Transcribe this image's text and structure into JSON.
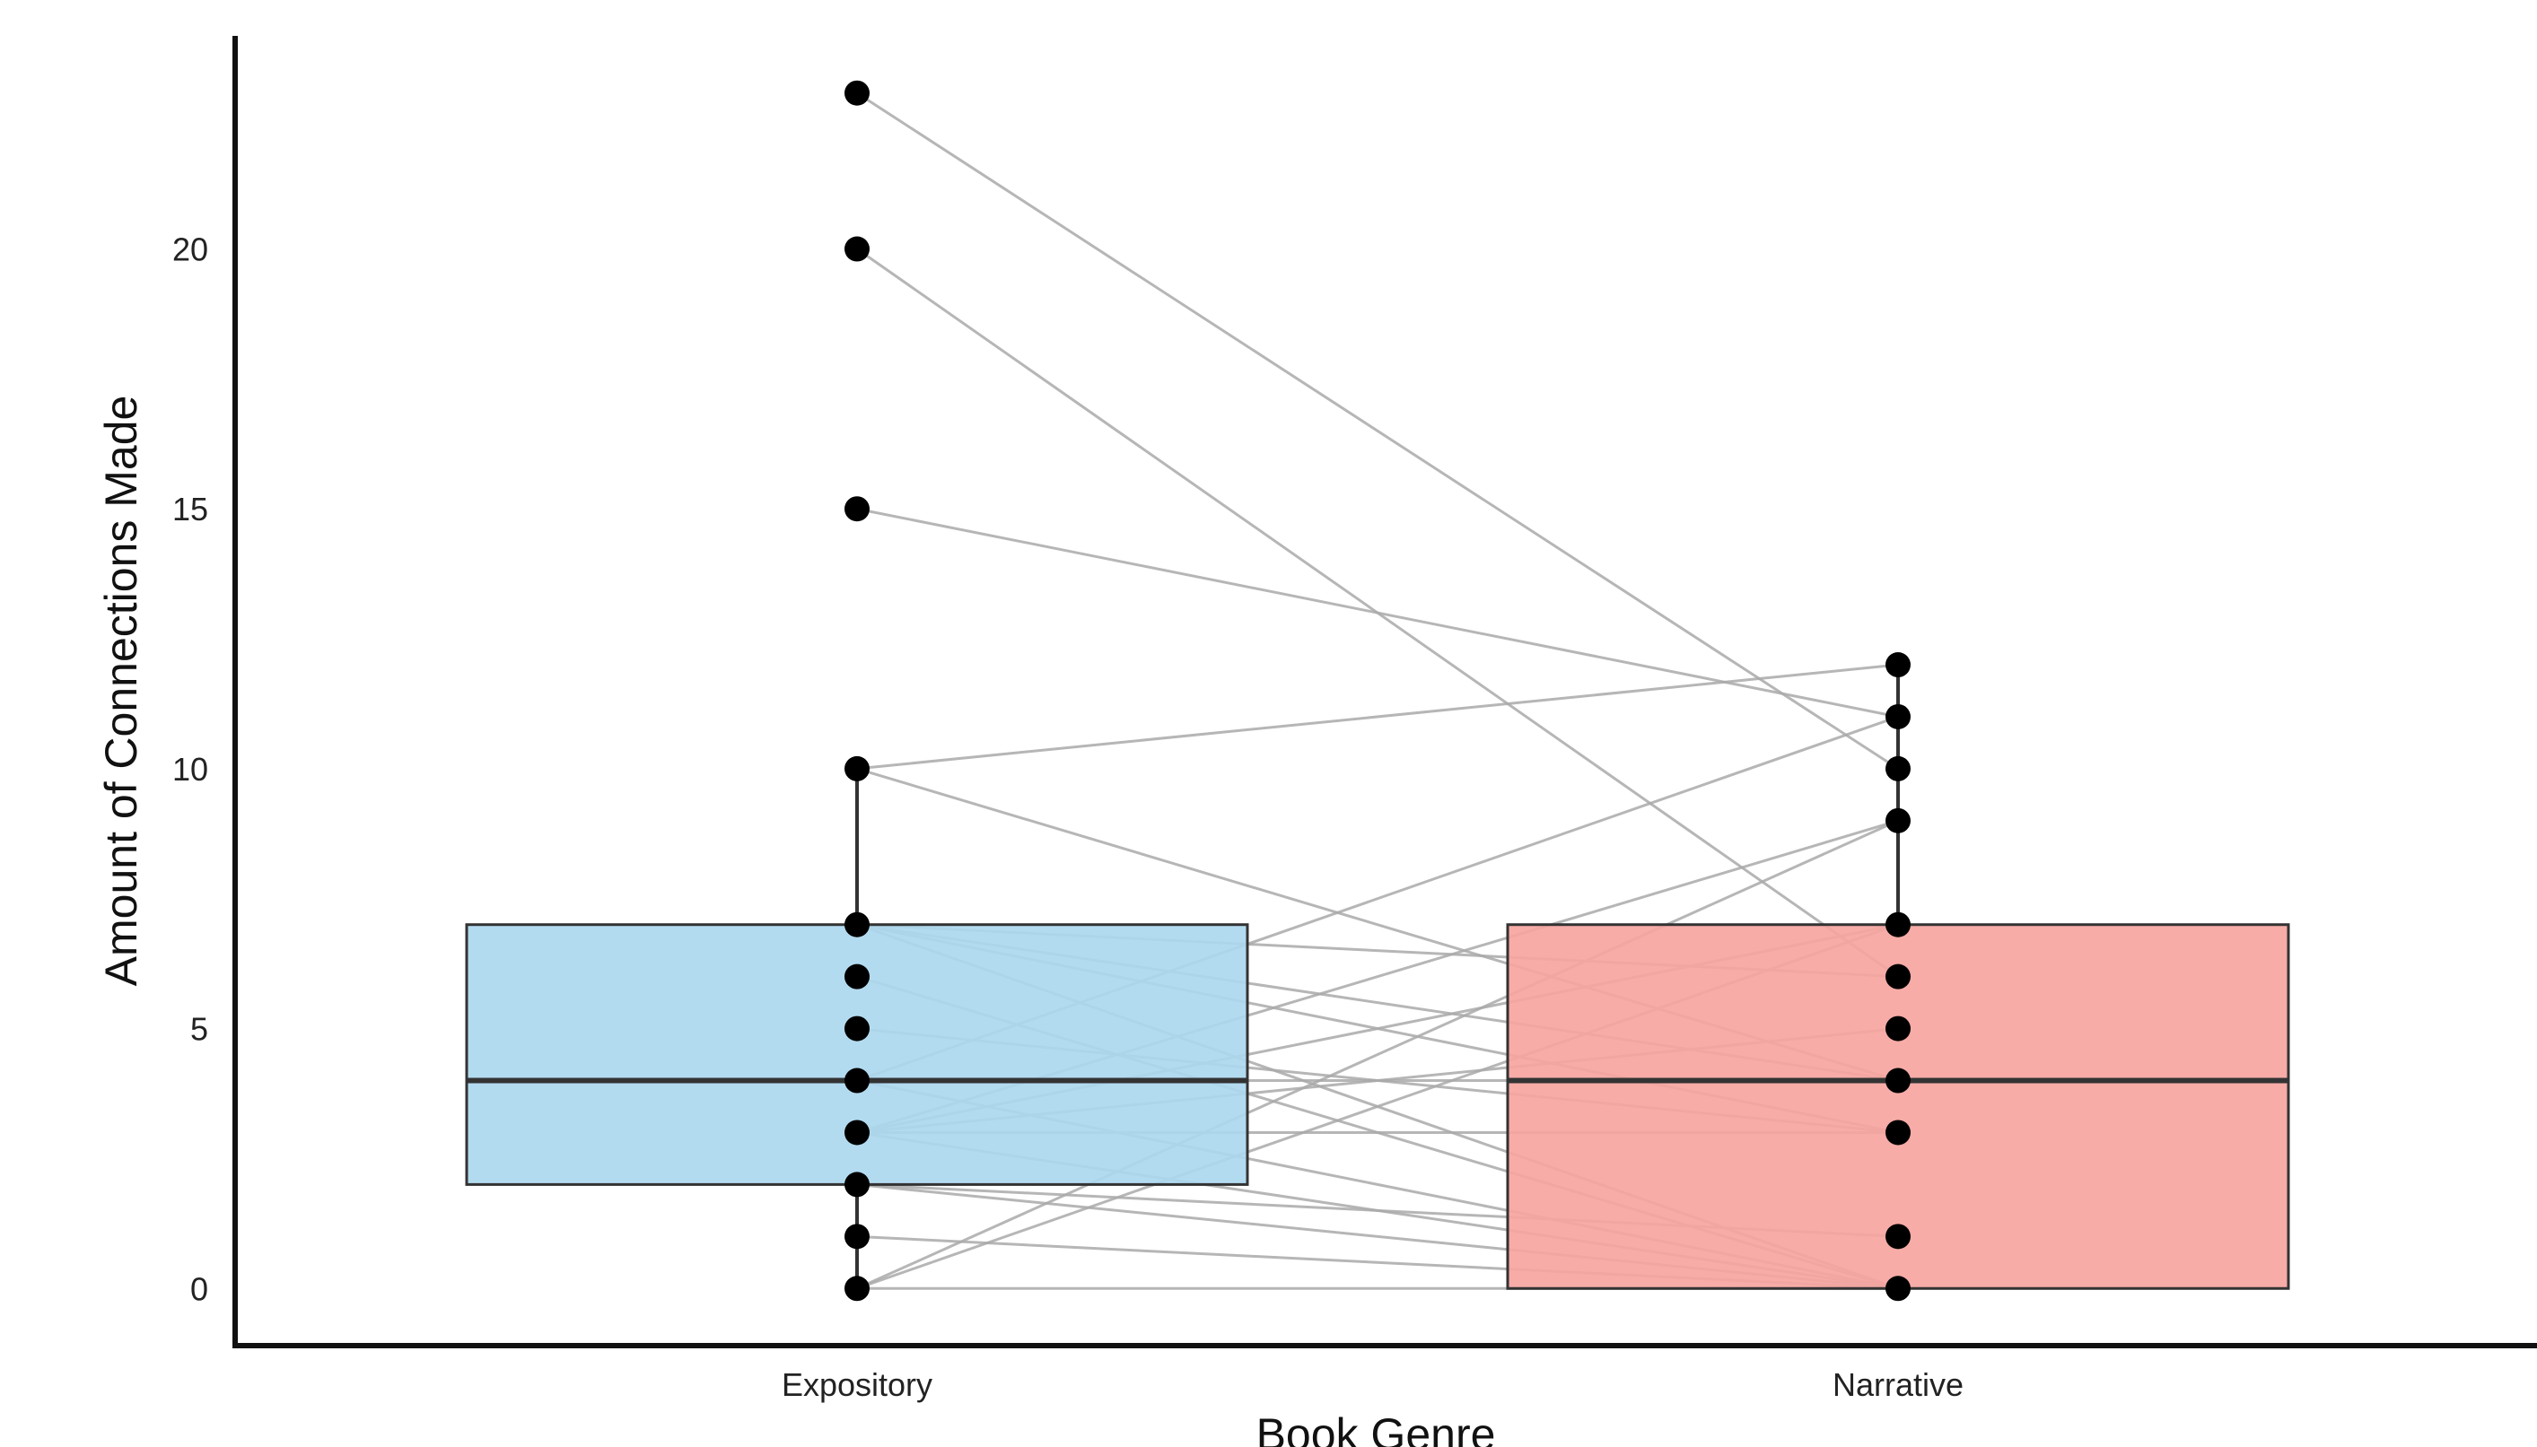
{
  "chart_data": {
    "type": "box",
    "title": "",
    "xlabel": "Book Genre",
    "ylabel": "Amount of Connections Made",
    "ylim": [
      -1.1,
      24.1
    ],
    "yticks": [
      0,
      5,
      10,
      15,
      20
    ],
    "grid": false,
    "legend": "none",
    "categories": [
      "Expository",
      "Narrative"
    ],
    "boxes": [
      {
        "category": "Expository",
        "q1": 2,
        "median": 4,
        "q3": 7,
        "whisker_low": 0,
        "whisker_high": 10,
        "fill": "#add8ef"
      },
      {
        "category": "Narrative",
        "q1": 0,
        "median": 4,
        "q3": 7,
        "whisker_low": 0,
        "whisker_high": 12,
        "fill": "#f6a5a0"
      }
    ],
    "paired_points": [
      [
        23,
        10
      ],
      [
        20,
        6
      ],
      [
        15,
        11
      ],
      [
        10,
        12
      ],
      [
        10,
        4
      ],
      [
        7,
        0
      ],
      [
        7,
        3
      ],
      [
        7,
        4
      ],
      [
        7,
        6
      ],
      [
        6,
        0
      ],
      [
        5,
        3
      ],
      [
        4,
        4
      ],
      [
        4,
        11
      ],
      [
        4,
        0
      ],
      [
        3,
        9
      ],
      [
        3,
        7
      ],
      [
        3,
        0
      ],
      [
        3,
        3
      ],
      [
        3,
        5
      ],
      [
        2,
        1
      ],
      [
        2,
        0
      ],
      [
        1,
        0
      ],
      [
        0,
        9
      ],
      [
        0,
        7
      ],
      [
        0,
        0
      ]
    ],
    "colors": {
      "point": "#000000",
      "pair_line": "#a9a9a9",
      "box_line": "#333333",
      "axis": "#111111"
    }
  }
}
